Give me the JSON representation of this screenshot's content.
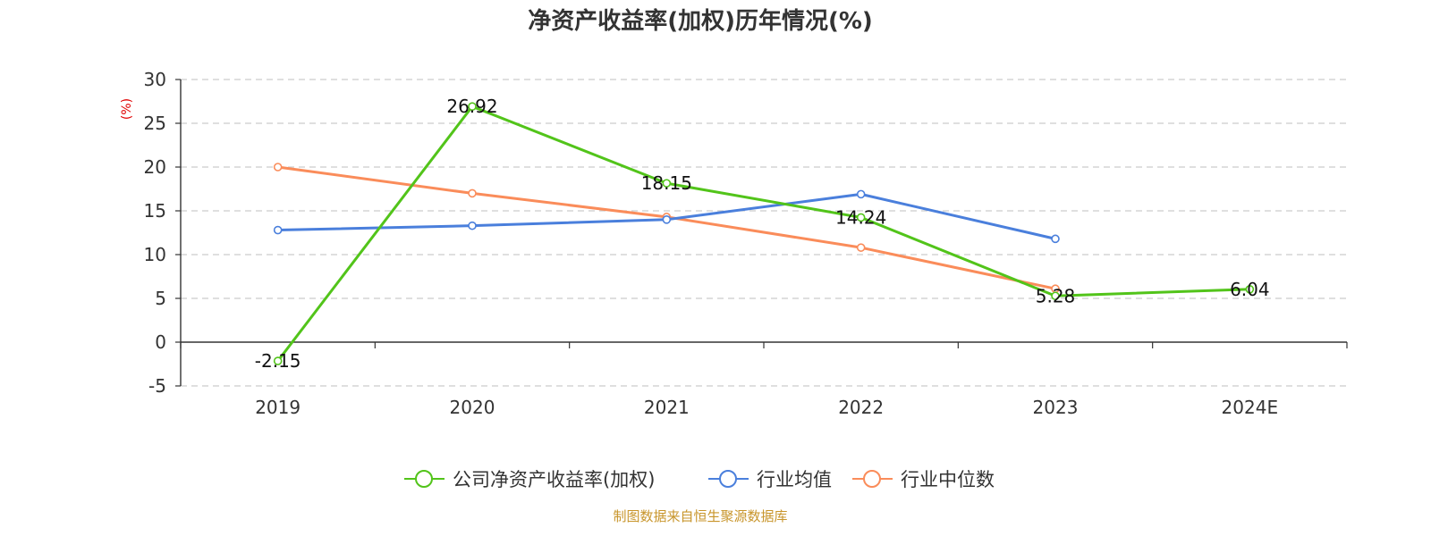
{
  "chart_data": {
    "type": "line",
    "title": "净资产收益率(加权)历年情况(%)",
    "ylabel": "(%)",
    "categories": [
      "2019",
      "2020",
      "2021",
      "2022",
      "2023",
      "2024E"
    ],
    "ylim": [
      -5,
      30
    ],
    "yticks": [
      -5,
      0,
      5,
      10,
      15,
      20,
      25,
      30
    ],
    "grid": true,
    "legend_position": "bottom",
    "series": [
      {
        "name": "公司净资产收益率(加权)",
        "color": "#52c41a",
        "values": [
          -2.15,
          26.92,
          18.15,
          14.24,
          5.28,
          6.04
        ],
        "labels": [
          "-2.15",
          "26.92",
          "18.15",
          "14.24",
          "5.28",
          "6.04"
        ]
      },
      {
        "name": "行业均值",
        "color": "#4a7fdc",
        "values": [
          12.8,
          13.3,
          14.0,
          16.9,
          11.8,
          null
        ],
        "labels": []
      },
      {
        "name": "行业中位数",
        "color": "#fa8c5a",
        "values": [
          20.0,
          17.0,
          14.3,
          10.8,
          6.1,
          null
        ],
        "labels": []
      }
    ]
  },
  "footer": {
    "source": "制图数据来自恒生聚源数据库",
    "source_color": "#c8952b"
  },
  "colors": {
    "axis": "#333333",
    "grid": "#cccccc",
    "ylabel": "#e00000"
  }
}
